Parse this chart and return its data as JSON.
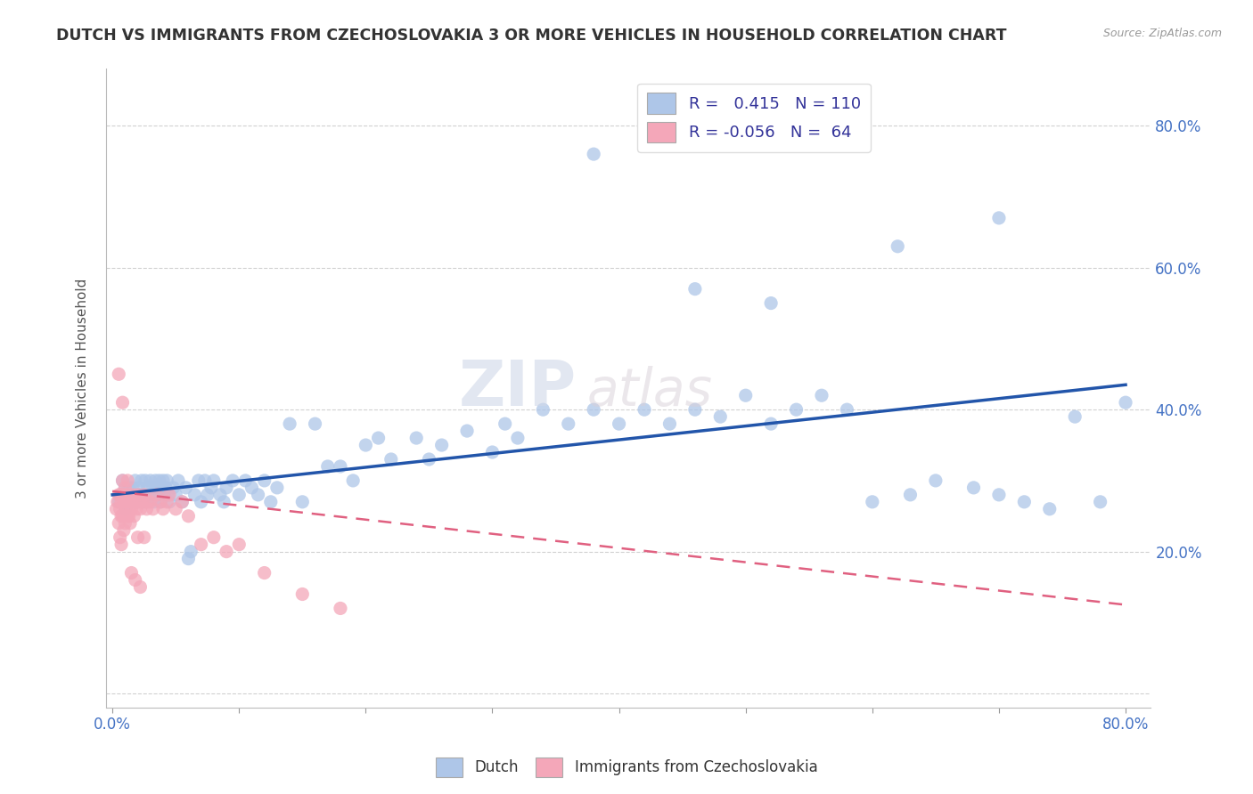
{
  "title": "DUTCH VS IMMIGRANTS FROM CZECHOSLOVAKIA 3 OR MORE VEHICLES IN HOUSEHOLD CORRELATION CHART",
  "source": "Source: ZipAtlas.com",
  "ylabel": "3 or more Vehicles in Household",
  "ytick_vals": [
    0.0,
    0.2,
    0.4,
    0.6,
    0.8
  ],
  "ytick_labels": [
    "",
    "20.0%",
    "40.0%",
    "60.0%",
    "80.0%"
  ],
  "xlim": [
    -0.005,
    0.82
  ],
  "ylim": [
    -0.02,
    0.88
  ],
  "legend_dutch_r": "0.415",
  "legend_dutch_n": "110",
  "legend_czech_r": "-0.056",
  "legend_czech_n": "64",
  "dutch_color": "#aec6e8",
  "czech_color": "#f4a7b9",
  "dutch_line_color": "#2255aa",
  "czech_line_color": "#e06080",
  "background_color": "#ffffff",
  "watermark_zip": "ZIP",
  "watermark_atlas": "atlas",
  "dutch_trendline": [
    0.0,
    0.28,
    0.8,
    0.435
  ],
  "czech_trendline": [
    0.0,
    0.285,
    0.8,
    0.125
  ],
  "dutch_x": [
    0.005,
    0.007,
    0.008,
    0.01,
    0.01,
    0.011,
    0.012,
    0.013,
    0.014,
    0.015,
    0.016,
    0.017,
    0.018,
    0.018,
    0.019,
    0.02,
    0.021,
    0.022,
    0.023,
    0.024,
    0.025,
    0.026,
    0.027,
    0.028,
    0.029,
    0.03,
    0.031,
    0.032,
    0.033,
    0.034,
    0.035,
    0.036,
    0.037,
    0.038,
    0.039,
    0.04,
    0.041,
    0.042,
    0.043,
    0.044,
    0.045,
    0.048,
    0.05,
    0.052,
    0.055,
    0.058,
    0.06,
    0.062,
    0.065,
    0.068,
    0.07,
    0.073,
    0.075,
    0.078,
    0.08,
    0.085,
    0.088,
    0.09,
    0.095,
    0.1,
    0.105,
    0.11,
    0.115,
    0.12,
    0.125,
    0.13,
    0.14,
    0.15,
    0.16,
    0.17,
    0.18,
    0.19,
    0.2,
    0.21,
    0.22,
    0.24,
    0.25,
    0.26,
    0.28,
    0.3,
    0.31,
    0.32,
    0.34,
    0.36,
    0.38,
    0.4,
    0.42,
    0.44,
    0.46,
    0.48,
    0.5,
    0.52,
    0.54,
    0.56,
    0.58,
    0.6,
    0.63,
    0.65,
    0.68,
    0.7,
    0.72,
    0.74,
    0.76,
    0.78,
    0.8,
    0.38,
    0.46,
    0.52,
    0.62,
    0.7
  ],
  "dutch_y": [
    0.27,
    0.28,
    0.3,
    0.26,
    0.29,
    0.28,
    0.27,
    0.29,
    0.28,
    0.27,
    0.29,
    0.28,
    0.3,
    0.27,
    0.28,
    0.27,
    0.29,
    0.28,
    0.3,
    0.27,
    0.28,
    0.3,
    0.27,
    0.29,
    0.28,
    0.3,
    0.28,
    0.29,
    0.27,
    0.3,
    0.29,
    0.28,
    0.3,
    0.27,
    0.29,
    0.3,
    0.28,
    0.29,
    0.3,
    0.28,
    0.27,
    0.29,
    0.28,
    0.3,
    0.27,
    0.29,
    0.19,
    0.2,
    0.28,
    0.3,
    0.27,
    0.3,
    0.28,
    0.29,
    0.3,
    0.28,
    0.27,
    0.29,
    0.3,
    0.28,
    0.3,
    0.29,
    0.28,
    0.3,
    0.27,
    0.29,
    0.38,
    0.27,
    0.38,
    0.32,
    0.32,
    0.3,
    0.35,
    0.36,
    0.33,
    0.36,
    0.33,
    0.35,
    0.37,
    0.34,
    0.38,
    0.36,
    0.4,
    0.38,
    0.4,
    0.38,
    0.4,
    0.38,
    0.4,
    0.39,
    0.42,
    0.38,
    0.4,
    0.42,
    0.4,
    0.27,
    0.28,
    0.3,
    0.29,
    0.28,
    0.27,
    0.26,
    0.39,
    0.27,
    0.41,
    0.76,
    0.57,
    0.55,
    0.63,
    0.67
  ],
  "czech_x": [
    0.003,
    0.004,
    0.005,
    0.005,
    0.006,
    0.006,
    0.007,
    0.007,
    0.008,
    0.008,
    0.009,
    0.009,
    0.01,
    0.01,
    0.011,
    0.011,
    0.012,
    0.012,
    0.013,
    0.013,
    0.014,
    0.015,
    0.015,
    0.016,
    0.017,
    0.018,
    0.019,
    0.02,
    0.021,
    0.022,
    0.024,
    0.025,
    0.027,
    0.028,
    0.03,
    0.032,
    0.035,
    0.038,
    0.04,
    0.043,
    0.045,
    0.05,
    0.055,
    0.06,
    0.07,
    0.08,
    0.09,
    0.1,
    0.12,
    0.15,
    0.18,
    0.02,
    0.025,
    0.008,
    0.01,
    0.012,
    0.006,
    0.007,
    0.009,
    0.015,
    0.018,
    0.022,
    0.005,
    0.008
  ],
  "czech_y": [
    0.26,
    0.27,
    0.24,
    0.28,
    0.26,
    0.28,
    0.25,
    0.27,
    0.25,
    0.28,
    0.25,
    0.27,
    0.24,
    0.27,
    0.26,
    0.28,
    0.25,
    0.28,
    0.25,
    0.27,
    0.24,
    0.27,
    0.26,
    0.28,
    0.25,
    0.27,
    0.26,
    0.28,
    0.27,
    0.26,
    0.27,
    0.28,
    0.26,
    0.27,
    0.27,
    0.26,
    0.28,
    0.27,
    0.26,
    0.27,
    0.28,
    0.26,
    0.27,
    0.25,
    0.21,
    0.22,
    0.2,
    0.21,
    0.17,
    0.14,
    0.12,
    0.22,
    0.22,
    0.3,
    0.29,
    0.3,
    0.22,
    0.21,
    0.23,
    0.17,
    0.16,
    0.15,
    0.45,
    0.41
  ]
}
